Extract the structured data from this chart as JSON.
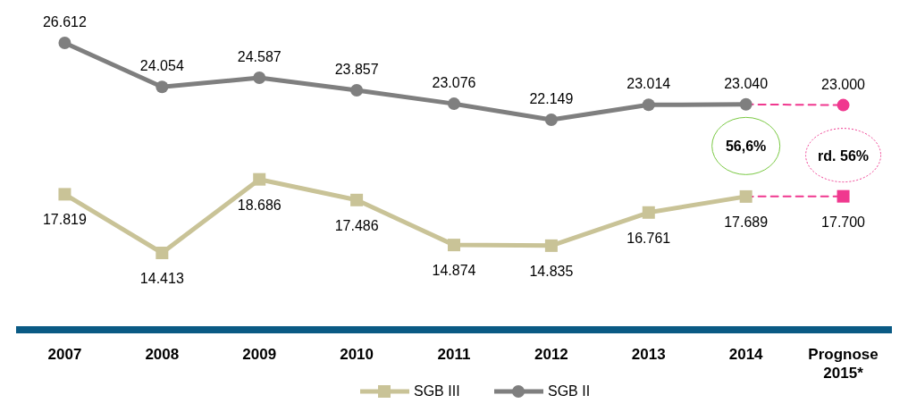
{
  "chart_data": {
    "type": "line",
    "categories": [
      "2007",
      "2008",
      "2009",
      "2010",
      "2011",
      "2012",
      "2013",
      "2014",
      "Prognose\n2015*"
    ],
    "data_labels": true,
    "legend": "bottom",
    "series": [
      {
        "color": "#f0388f",
        "line_style": "dashed",
        "marker": "circle",
        "values": [
          null,
          null,
          null,
          null,
          null,
          null,
          null,
          23040,
          23000
        ],
        "value_labels": [
          null,
          null,
          null,
          null,
          null,
          null,
          null,
          null,
          "23.000"
        ]
      },
      {
        "color": "#f0388f",
        "line_style": "dashed",
        "marker": "square",
        "values": [
          null,
          null,
          null,
          null,
          null,
          null,
          null,
          17689,
          17700
        ],
        "value_labels": [
          null,
          null,
          null,
          null,
          null,
          null,
          null,
          null,
          "17.700"
        ]
      },
      {
        "name": "SGB III",
        "color": "#c9c397",
        "line_style": "solid",
        "marker": "square",
        "values": [
          17819,
          14413,
          18686,
          17486,
          14874,
          14835,
          16761,
          17689,
          null
        ],
        "value_labels": [
          "17.819",
          "14.413",
          "18.686",
          "17.486",
          "14.874",
          "14.835",
          "16.761",
          "17.689",
          null
        ]
      },
      {
        "name": "SGB II",
        "color": "#7f7f7f",
        "line_style": "solid",
        "marker": "circle",
        "values": [
          26612,
          24054,
          24587,
          23857,
          23076,
          22149,
          23014,
          23040,
          null
        ],
        "value_labels": [
          "26.612",
          "24.054",
          "24.587",
          "23.857",
          "23.076",
          "22.149",
          "23.014",
          "23.040",
          null
        ]
      }
    ],
    "annotations": [
      "56,6%",
      "rd. 56%"
    ]
  }
}
